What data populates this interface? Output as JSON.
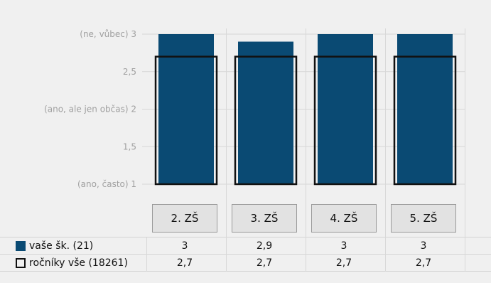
{
  "colors": {
    "series_fill": "#0a4a73",
    "benchmark_stroke": "#111111",
    "grid": "#d6d6d6",
    "background": "#f0f0f0"
  },
  "chart_data": {
    "type": "bar",
    "categories": [
      "2. ZŠ",
      "3. ZŠ",
      "4. ZŠ",
      "5. ZŠ"
    ],
    "series": [
      {
        "name": "vaše šk. (21)",
        "values": [
          3,
          2.9,
          3,
          3
        ],
        "style": "filled"
      },
      {
        "name": "ročníky vše (18261)",
        "values": [
          2.7,
          2.7,
          2.7,
          2.7
        ],
        "style": "outline"
      }
    ],
    "table_values": [
      [
        "3",
        "2,9",
        "3",
        "3"
      ],
      [
        "2,7",
        "2,7",
        "2,7",
        "2,7"
      ]
    ],
    "ylim": [
      1,
      3
    ],
    "yticks": [
      {
        "value": 3,
        "label": "(ne, vůbec)  3"
      },
      {
        "value": 2.5,
        "label": "2,5"
      },
      {
        "value": 2,
        "label": "(ano, ale jen občas)  2"
      },
      {
        "value": 1.5,
        "label": "1,5"
      },
      {
        "value": 1,
        "label": "(ano, často)  1"
      }
    ],
    "grid": true,
    "legend": "bottom-left table"
  }
}
